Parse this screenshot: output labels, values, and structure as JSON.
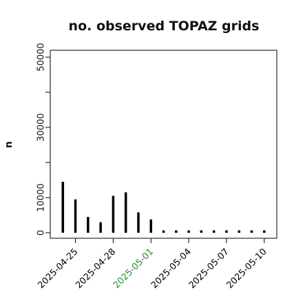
{
  "chart_data": {
    "type": "bar",
    "title": "no. observed TOPAZ grids",
    "xlabel": "",
    "ylabel": "n",
    "ylim": [
      0,
      50000
    ],
    "yticks": [
      0,
      10000,
      30000,
      50000
    ],
    "yticks_minor": [
      20000,
      40000
    ],
    "x_range": [
      "2025-04-23",
      "2025-05-11"
    ],
    "x": [
      "2025-04-24",
      "2025-04-25",
      "2025-04-26",
      "2025-04-27",
      "2025-04-28",
      "2025-04-29",
      "2025-04-30",
      "2025-05-01",
      "2025-05-02",
      "2025-05-03",
      "2025-05-04",
      "2025-05-05",
      "2025-05-06",
      "2025-05-07",
      "2025-05-08",
      "2025-05-09",
      "2025-05-10"
    ],
    "values": [
      14500,
      9500,
      4500,
      3000,
      10500,
      11500,
      5800,
      3800,
      0,
      0,
      0,
      0,
      0,
      0,
      0,
      0,
      0
    ],
    "xtick_labels": [
      {
        "date": "2025-04-25",
        "label": "2025-04-25",
        "color": "#000000"
      },
      {
        "date": "2025-04-28",
        "label": "2025-04-28",
        "color": "#000000"
      },
      {
        "date": "2025-05-01",
        "label": "2025-05-01",
        "color": "#2e8b2e"
      },
      {
        "date": "2025-05-04",
        "label": "2025-05-04",
        "color": "#000000"
      },
      {
        "date": "2025-05-07",
        "label": "2025-05-07",
        "color": "#000000"
      },
      {
        "date": "2025-05-10",
        "label": "2025-05-10",
        "color": "#000000"
      }
    ],
    "bar_color": "#000000",
    "grid": false
  }
}
